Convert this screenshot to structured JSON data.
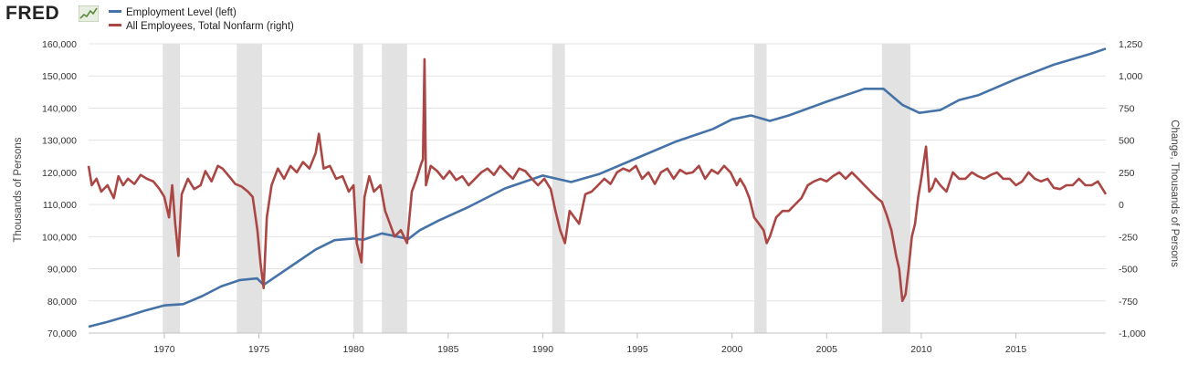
{
  "header": {
    "logo_text": "FRED",
    "logo_icon": "chart-line-icon",
    "legend": [
      {
        "label": "Employment Level (left)",
        "color": "#4572a7"
      },
      {
        "label": "All Employees, Total Nonfarm (right)",
        "color": "#aa4643"
      }
    ]
  },
  "chart_data": {
    "type": "line",
    "recession_color": "#e2e2e2",
    "grid": true,
    "x_axis": {
      "range": [
        1966.0,
        2019.75
      ],
      "ticks": [
        "1970",
        "1975",
        "1980",
        "1985",
        "1990",
        "1995",
        "2000",
        "2005",
        "2010",
        "2015"
      ]
    },
    "left_axis": {
      "label": "Thousands of Persons",
      "range": [
        70000,
        160000
      ],
      "ticks": [
        "70,000",
        "80,000",
        "90,000",
        "100,000",
        "110,000",
        "120,000",
        "130,000",
        "140,000",
        "150,000",
        "160,000"
      ]
    },
    "right_axis": {
      "label": "Change, Thousands of Persons",
      "range": [
        -1000,
        1250
      ],
      "ticks": [
        "-1,000",
        "-750",
        "-500",
        "-250",
        "0",
        "250",
        "500",
        "750",
        "1,000",
        "1,250"
      ]
    },
    "recessions": [
      [
        1969.92,
        1970.83
      ],
      [
        1973.83,
        1975.17
      ],
      [
        1980.0,
        1980.5
      ],
      [
        1981.5,
        1982.83
      ],
      [
        1990.5,
        1991.17
      ],
      [
        2001.17,
        2001.83
      ],
      [
        2007.92,
        2009.42
      ]
    ],
    "series": [
      {
        "name": "Employment Level (left)",
        "axis": "left",
        "color": "#4572a7",
        "x": [
          1966.0,
          1967.0,
          1968.0,
          1969.0,
          1970.0,
          1971.0,
          1972.0,
          1973.0,
          1974.0,
          1974.9,
          1975.25,
          1976.0,
          1977.0,
          1978.0,
          1979.0,
          1980.0,
          1980.5,
          1981.5,
          1982.9,
          1983.5,
          1984.5,
          1986.0,
          1988.0,
          1990.0,
          1991.5,
          1993.0,
          1995.0,
          1997.0,
          1999.0,
          2000.0,
          2001.0,
          2002.0,
          2003.0,
          2005.0,
          2007.0,
          2008.0,
          2009.0,
          2009.9,
          2011.0,
          2012.0,
          2013.0,
          2015.0,
          2017.0,
          2019.0,
          2019.75
        ],
        "values": [
          72000,
          73500,
          75200,
          77000,
          78600,
          79000,
          81500,
          84500,
          86500,
          87000,
          85000,
          88000,
          92000,
          96000,
          98900,
          99400,
          99000,
          101000,
          99300,
          102000,
          105000,
          109000,
          115000,
          119000,
          117000,
          119500,
          124500,
          129500,
          133500,
          136500,
          137700,
          136000,
          137700,
          142000,
          146000,
          146000,
          141000,
          138500,
          139400,
          142500,
          144000,
          149000,
          153500,
          157000,
          158500
        ]
      },
      {
        "name": "All Employees, Total Nonfarm (right)",
        "axis": "right",
        "color": "#aa4643",
        "x": [
          1966.0,
          1966.17,
          1966.42,
          1966.67,
          1967.0,
          1967.33,
          1967.58,
          1967.83,
          1968.08,
          1968.42,
          1968.75,
          1969.08,
          1969.42,
          1969.75,
          1970.0,
          1970.25,
          1970.42,
          1970.58,
          1970.75,
          1970.92,
          1971.25,
          1971.58,
          1971.92,
          1972.17,
          1972.5,
          1972.83,
          1973.08,
          1973.42,
          1973.75,
          1974.08,
          1974.42,
          1974.67,
          1974.92,
          1975.08,
          1975.25,
          1975.42,
          1975.67,
          1976.0,
          1976.33,
          1976.67,
          1977.0,
          1977.33,
          1977.67,
          1978.0,
          1978.17,
          1978.42,
          1978.75,
          1979.08,
          1979.42,
          1979.75,
          1980.0,
          1980.17,
          1980.42,
          1980.58,
          1980.83,
          1981.08,
          1981.42,
          1981.67,
          1981.92,
          1982.17,
          1982.5,
          1982.83,
          1983.08,
          1983.33,
          1983.58,
          1983.67,
          1983.75,
          1983.83,
          1984.08,
          1984.42,
          1984.75,
          1985.08,
          1985.42,
          1985.75,
          1986.08,
          1986.42,
          1986.75,
          1987.08,
          1987.42,
          1987.75,
          1988.08,
          1988.42,
          1988.75,
          1989.08,
          1989.42,
          1989.75,
          1990.08,
          1990.42,
          1990.67,
          1990.92,
          1991.17,
          1991.42,
          1991.67,
          1991.92,
          1992.25,
          1992.58,
          1992.92,
          1993.25,
          1993.58,
          1993.92,
          1994.25,
          1994.58,
          1994.92,
          1995.25,
          1995.58,
          1995.92,
          1996.25,
          1996.58,
          1996.92,
          1997.25,
          1997.58,
          1997.92,
          1998.25,
          1998.58,
          1998.92,
          1999.25,
          1999.58,
          1999.92,
          2000.25,
          2000.42,
          2000.67,
          2000.92,
          2001.17,
          2001.42,
          2001.67,
          2001.83,
          2002.0,
          2002.33,
          2002.67,
          2003.0,
          2003.33,
          2003.67,
          2004.0,
          2004.33,
          2004.67,
          2005.0,
          2005.33,
          2005.67,
          2006.0,
          2006.33,
          2006.67,
          2007.0,
          2007.33,
          2007.67,
          2007.92,
          2008.17,
          2008.42,
          2008.67,
          2008.83,
          2009.0,
          2009.17,
          2009.33,
          2009.5,
          2009.67,
          2009.83,
          2010.0,
          2010.25,
          2010.42,
          2010.58,
          2010.75,
          2011.0,
          2011.33,
          2011.67,
          2012.0,
          2012.33,
          2012.67,
          2013.0,
          2013.33,
          2013.67,
          2014.0,
          2014.33,
          2014.67,
          2015.0,
          2015.33,
          2015.67,
          2016.0,
          2016.33,
          2016.67,
          2017.0,
          2017.33,
          2017.67,
          2018.0,
          2018.33,
          2018.67,
          2019.0,
          2019.33,
          2019.58,
          2019.75
        ],
        "values": [
          300,
          150,
          200,
          100,
          150,
          50,
          220,
          150,
          200,
          160,
          230,
          200,
          180,
          120,
          60,
          -100,
          150,
          -150,
          -400,
          80,
          200,
          120,
          150,
          260,
          180,
          300,
          280,
          220,
          160,
          140,
          100,
          60,
          -200,
          -450,
          -650,
          -100,
          150,
          280,
          200,
          300,
          250,
          330,
          280,
          400,
          550,
          280,
          300,
          200,
          220,
          100,
          150,
          -300,
          -450,
          60,
          220,
          100,
          150,
          -50,
          -150,
          -250,
          -200,
          -300,
          100,
          200,
          320,
          350,
          1130,
          150,
          300,
          260,
          200,
          260,
          190,
          220,
          150,
          200,
          250,
          280,
          230,
          300,
          250,
          200,
          280,
          260,
          200,
          150,
          200,
          120,
          -50,
          -200,
          -300,
          -50,
          -100,
          -150,
          80,
          100,
          150,
          200,
          160,
          250,
          280,
          260,
          300,
          200,
          250,
          160,
          250,
          280,
          200,
          270,
          240,
          250,
          300,
          200,
          270,
          240,
          300,
          250,
          150,
          200,
          140,
          50,
          -100,
          -150,
          -200,
          -300,
          -250,
          -100,
          -50,
          -50,
          0,
          50,
          150,
          180,
          200,
          180,
          220,
          250,
          200,
          250,
          200,
          150,
          100,
          50,
          20,
          -80,
          -200,
          -400,
          -500,
          -750,
          -700,
          -500,
          -250,
          -150,
          50,
          200,
          450,
          100,
          130,
          200,
          150,
          100,
          250,
          200,
          200,
          250,
          220,
          200,
          230,
          250,
          200,
          200,
          150,
          180,
          250,
          200,
          180,
          200,
          130,
          120,
          150,
          150,
          200,
          150,
          150,
          180,
          120,
          80
        ]
      }
    ]
  }
}
